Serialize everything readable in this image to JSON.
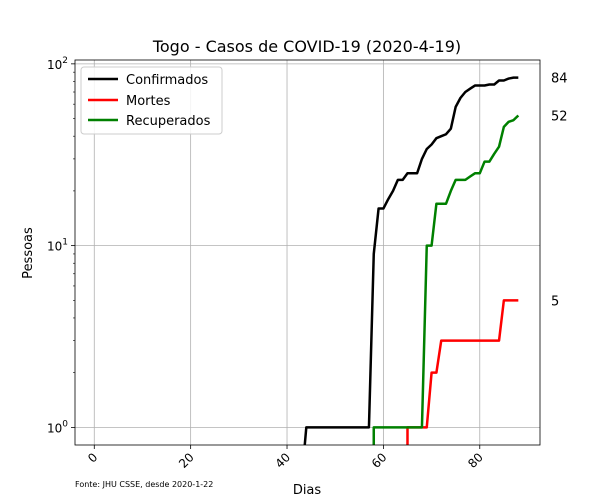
{
  "chart_data": {
    "type": "line",
    "title": "Togo - Casos de COVID-19 (2020-4-19)",
    "xlabel": "Dias",
    "ylabel": "Pessoas",
    "yscale": "log",
    "xlim": [
      -4,
      92.5
    ],
    "ylim": [
      0.8,
      105
    ],
    "xticks": [
      0,
      20,
      40,
      60,
      80
    ],
    "xtick_labels": [
      "0",
      "20",
      "40",
      "60",
      "80"
    ],
    "yticks": [
      1,
      10,
      100
    ],
    "ytick_labels": [
      {
        "base": "10",
        "exp": "0"
      },
      {
        "base": "10",
        "exp": "1"
      },
      {
        "base": "10",
        "exp": "2"
      }
    ],
    "grid": true,
    "legend_position": "top-left",
    "footnote": "Fonte: JHU CSSE, desde 2020-1-22",
    "series": [
      {
        "name": "Confirmados",
        "color": "#000000",
        "points": [
          [
            43,
            0.5
          ],
          [
            44,
            1
          ],
          [
            57,
            1
          ],
          [
            58,
            9
          ],
          [
            59,
            16
          ],
          [
            60,
            16
          ],
          [
            61,
            18
          ],
          [
            62,
            20
          ],
          [
            63,
            23
          ],
          [
            64,
            23
          ],
          [
            65,
            25
          ],
          [
            66,
            25
          ],
          [
            67,
            25
          ],
          [
            68,
            30
          ],
          [
            69,
            34
          ],
          [
            70,
            36
          ],
          [
            71,
            39
          ],
          [
            72,
            40
          ],
          [
            73,
            41
          ],
          [
            74,
            44
          ],
          [
            75,
            58
          ],
          [
            76,
            65
          ],
          [
            77,
            70
          ],
          [
            78,
            73
          ],
          [
            79,
            76
          ],
          [
            80,
            76
          ],
          [
            81,
            76
          ],
          [
            82,
            77
          ],
          [
            83,
            77
          ],
          [
            84,
            81
          ],
          [
            85,
            81
          ],
          [
            86,
            83
          ],
          [
            87,
            84
          ],
          [
            88,
            84
          ]
        ],
        "end_label": "84"
      },
      {
        "name": "Mortes",
        "color": "#ff0000",
        "points": [
          [
            65,
            0.5
          ],
          [
            65,
            1
          ],
          [
            69,
            1
          ],
          [
            70,
            2
          ],
          [
            71,
            2
          ],
          [
            72,
            3
          ],
          [
            73,
            3
          ],
          [
            84,
            3
          ],
          [
            85,
            5
          ],
          [
            86,
            5
          ],
          [
            88,
            5
          ]
        ],
        "end_label": "5"
      },
      {
        "name": "Recuperados",
        "color": "#008000",
        "points": [
          [
            58,
            0.5
          ],
          [
            58,
            1
          ],
          [
            68,
            1
          ],
          [
            69,
            10
          ],
          [
            70,
            10
          ],
          [
            71,
            17
          ],
          [
            72,
            17
          ],
          [
            73,
            17
          ],
          [
            74,
            20
          ],
          [
            75,
            23
          ],
          [
            76,
            23
          ],
          [
            77,
            23
          ],
          [
            78,
            24
          ],
          [
            79,
            25
          ],
          [
            80,
            25
          ],
          [
            81,
            29
          ],
          [
            82,
            29
          ],
          [
            83,
            32
          ],
          [
            84,
            35
          ],
          [
            85,
            45
          ],
          [
            86,
            48
          ],
          [
            87,
            49
          ],
          [
            88,
            52
          ]
        ],
        "end_label": "52"
      }
    ]
  }
}
